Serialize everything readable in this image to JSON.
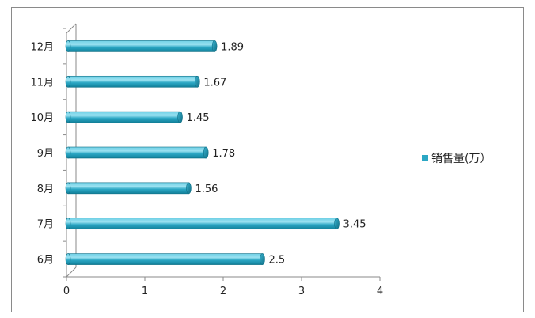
{
  "chart_data": {
    "type": "bar",
    "orientation": "horizontal",
    "categories": [
      "6月",
      "7月",
      "8月",
      "9月",
      "10月",
      "11月",
      "12月"
    ],
    "series": [
      {
        "name": "销售量(万）",
        "values": [
          2.5,
          3.45,
          1.56,
          1.78,
          1.45,
          1.67,
          1.89
        ]
      }
    ],
    "data_labels": [
      "2.5",
      "3.45",
      "1.56",
      "1.78",
      "1.45",
      "1.67",
      "1.89"
    ],
    "xlim": [
      0,
      4
    ],
    "xticks": [
      "0",
      "1",
      "2",
      "3",
      "4"
    ],
    "grid": false,
    "legend_position": "right",
    "bar_style": "3d-cylinder",
    "colors": {
      "bar": "#2ba7c4",
      "bar_light": "#8fdbec",
      "bar_dark": "#117f99",
      "axis": "#8a8a8a",
      "frame": "#8a8a8a"
    }
  }
}
